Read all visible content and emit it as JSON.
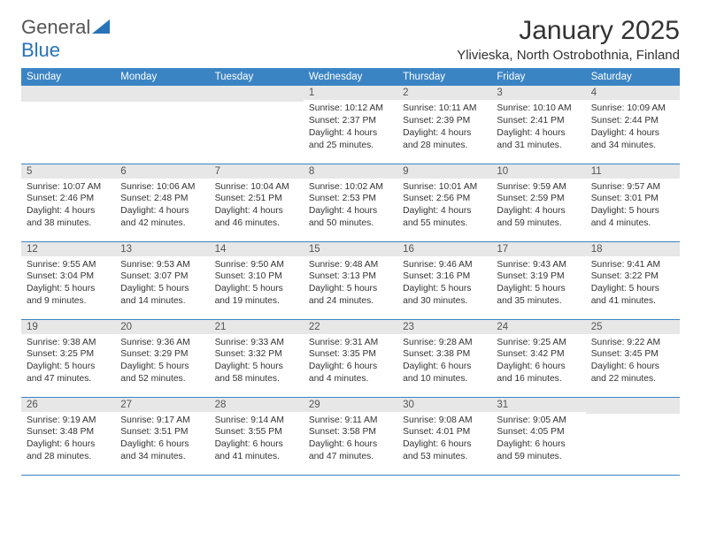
{
  "logo": {
    "part1": "General",
    "part2": "Blue"
  },
  "title": "January 2025",
  "location": "Ylivieska, North Ostrobothnia, Finland",
  "colors": {
    "header_bg": "#3b84c4",
    "header_fg": "#ffffff",
    "daynum_bg": "#e7e7e7",
    "rule": "#3b84c4",
    "logo_blue": "#2773b8",
    "text": "#333333"
  },
  "weekdays": [
    "Sunday",
    "Monday",
    "Tuesday",
    "Wednesday",
    "Thursday",
    "Friday",
    "Saturday"
  ],
  "cells": [
    {
      "day": "",
      "l1": "",
      "l2": "",
      "l3": "",
      "l4": ""
    },
    {
      "day": "",
      "l1": "",
      "l2": "",
      "l3": "",
      "l4": ""
    },
    {
      "day": "",
      "l1": "",
      "l2": "",
      "l3": "",
      "l4": ""
    },
    {
      "day": "1",
      "l1": "Sunrise: 10:12 AM",
      "l2": "Sunset: 2:37 PM",
      "l3": "Daylight: 4 hours",
      "l4": "and 25 minutes."
    },
    {
      "day": "2",
      "l1": "Sunrise: 10:11 AM",
      "l2": "Sunset: 2:39 PM",
      "l3": "Daylight: 4 hours",
      "l4": "and 28 minutes."
    },
    {
      "day": "3",
      "l1": "Sunrise: 10:10 AM",
      "l2": "Sunset: 2:41 PM",
      "l3": "Daylight: 4 hours",
      "l4": "and 31 minutes."
    },
    {
      "day": "4",
      "l1": "Sunrise: 10:09 AM",
      "l2": "Sunset: 2:44 PM",
      "l3": "Daylight: 4 hours",
      "l4": "and 34 minutes."
    },
    {
      "day": "5",
      "l1": "Sunrise: 10:07 AM",
      "l2": "Sunset: 2:46 PM",
      "l3": "Daylight: 4 hours",
      "l4": "and 38 minutes."
    },
    {
      "day": "6",
      "l1": "Sunrise: 10:06 AM",
      "l2": "Sunset: 2:48 PM",
      "l3": "Daylight: 4 hours",
      "l4": "and 42 minutes."
    },
    {
      "day": "7",
      "l1": "Sunrise: 10:04 AM",
      "l2": "Sunset: 2:51 PM",
      "l3": "Daylight: 4 hours",
      "l4": "and 46 minutes."
    },
    {
      "day": "8",
      "l1": "Sunrise: 10:02 AM",
      "l2": "Sunset: 2:53 PM",
      "l3": "Daylight: 4 hours",
      "l4": "and 50 minutes."
    },
    {
      "day": "9",
      "l1": "Sunrise: 10:01 AM",
      "l2": "Sunset: 2:56 PM",
      "l3": "Daylight: 4 hours",
      "l4": "and 55 minutes."
    },
    {
      "day": "10",
      "l1": "Sunrise: 9:59 AM",
      "l2": "Sunset: 2:59 PM",
      "l3": "Daylight: 4 hours",
      "l4": "and 59 minutes."
    },
    {
      "day": "11",
      "l1": "Sunrise: 9:57 AM",
      "l2": "Sunset: 3:01 PM",
      "l3": "Daylight: 5 hours",
      "l4": "and 4 minutes."
    },
    {
      "day": "12",
      "l1": "Sunrise: 9:55 AM",
      "l2": "Sunset: 3:04 PM",
      "l3": "Daylight: 5 hours",
      "l4": "and 9 minutes."
    },
    {
      "day": "13",
      "l1": "Sunrise: 9:53 AM",
      "l2": "Sunset: 3:07 PM",
      "l3": "Daylight: 5 hours",
      "l4": "and 14 minutes."
    },
    {
      "day": "14",
      "l1": "Sunrise: 9:50 AM",
      "l2": "Sunset: 3:10 PM",
      "l3": "Daylight: 5 hours",
      "l4": "and 19 minutes."
    },
    {
      "day": "15",
      "l1": "Sunrise: 9:48 AM",
      "l2": "Sunset: 3:13 PM",
      "l3": "Daylight: 5 hours",
      "l4": "and 24 minutes."
    },
    {
      "day": "16",
      "l1": "Sunrise: 9:46 AM",
      "l2": "Sunset: 3:16 PM",
      "l3": "Daylight: 5 hours",
      "l4": "and 30 minutes."
    },
    {
      "day": "17",
      "l1": "Sunrise: 9:43 AM",
      "l2": "Sunset: 3:19 PM",
      "l3": "Daylight: 5 hours",
      "l4": "and 35 minutes."
    },
    {
      "day": "18",
      "l1": "Sunrise: 9:41 AM",
      "l2": "Sunset: 3:22 PM",
      "l3": "Daylight: 5 hours",
      "l4": "and 41 minutes."
    },
    {
      "day": "19",
      "l1": "Sunrise: 9:38 AM",
      "l2": "Sunset: 3:25 PM",
      "l3": "Daylight: 5 hours",
      "l4": "and 47 minutes."
    },
    {
      "day": "20",
      "l1": "Sunrise: 9:36 AM",
      "l2": "Sunset: 3:29 PM",
      "l3": "Daylight: 5 hours",
      "l4": "and 52 minutes."
    },
    {
      "day": "21",
      "l1": "Sunrise: 9:33 AM",
      "l2": "Sunset: 3:32 PM",
      "l3": "Daylight: 5 hours",
      "l4": "and 58 minutes."
    },
    {
      "day": "22",
      "l1": "Sunrise: 9:31 AM",
      "l2": "Sunset: 3:35 PM",
      "l3": "Daylight: 6 hours",
      "l4": "and 4 minutes."
    },
    {
      "day": "23",
      "l1": "Sunrise: 9:28 AM",
      "l2": "Sunset: 3:38 PM",
      "l3": "Daylight: 6 hours",
      "l4": "and 10 minutes."
    },
    {
      "day": "24",
      "l1": "Sunrise: 9:25 AM",
      "l2": "Sunset: 3:42 PM",
      "l3": "Daylight: 6 hours",
      "l4": "and 16 minutes."
    },
    {
      "day": "25",
      "l1": "Sunrise: 9:22 AM",
      "l2": "Sunset: 3:45 PM",
      "l3": "Daylight: 6 hours",
      "l4": "and 22 minutes."
    },
    {
      "day": "26",
      "l1": "Sunrise: 9:19 AM",
      "l2": "Sunset: 3:48 PM",
      "l3": "Daylight: 6 hours",
      "l4": "and 28 minutes."
    },
    {
      "day": "27",
      "l1": "Sunrise: 9:17 AM",
      "l2": "Sunset: 3:51 PM",
      "l3": "Daylight: 6 hours",
      "l4": "and 34 minutes."
    },
    {
      "day": "28",
      "l1": "Sunrise: 9:14 AM",
      "l2": "Sunset: 3:55 PM",
      "l3": "Daylight: 6 hours",
      "l4": "and 41 minutes."
    },
    {
      "day": "29",
      "l1": "Sunrise: 9:11 AM",
      "l2": "Sunset: 3:58 PM",
      "l3": "Daylight: 6 hours",
      "l4": "and 47 minutes."
    },
    {
      "day": "30",
      "l1": "Sunrise: 9:08 AM",
      "l2": "Sunset: 4:01 PM",
      "l3": "Daylight: 6 hours",
      "l4": "and 53 minutes."
    },
    {
      "day": "31",
      "l1": "Sunrise: 9:05 AM",
      "l2": "Sunset: 4:05 PM",
      "l3": "Daylight: 6 hours",
      "l4": "and 59 minutes."
    },
    {
      "day": "",
      "l1": "",
      "l2": "",
      "l3": "",
      "l4": ""
    }
  ]
}
